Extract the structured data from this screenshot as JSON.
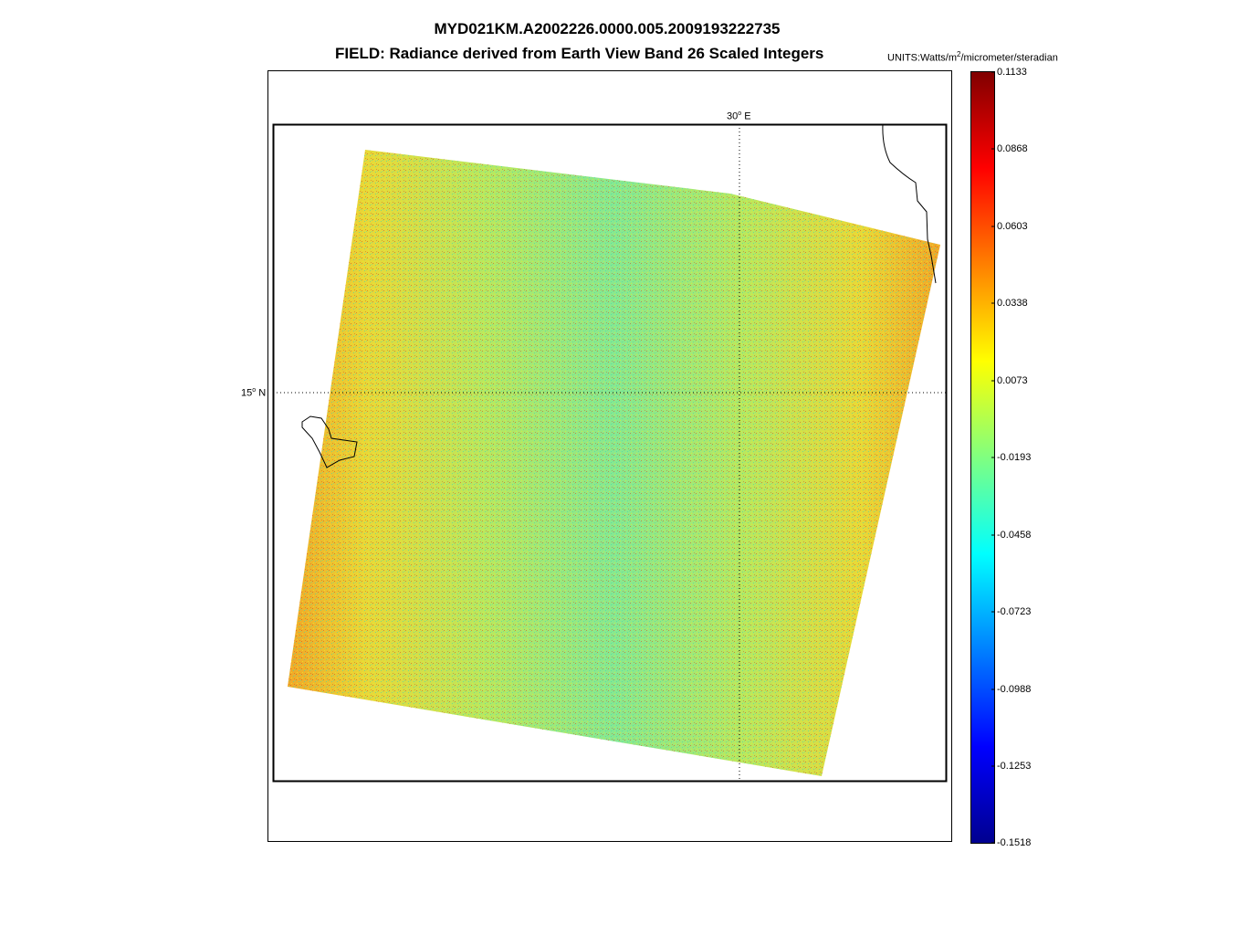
{
  "title": "MYD021KM.A2002226.0000.005.2009193222735",
  "field_line": "FIELD: Radiance derived from Earth View Band 26 Scaled Integers",
  "units": {
    "prefix": "UNITS:Watts/m",
    "exponent": "2",
    "suffix": "/micrometer/steradian"
  },
  "graticule": {
    "lon_label_value": "30",
    "lon_label_dir": "E",
    "lat_label_value": "15",
    "lat_label_dir": "N"
  },
  "colorbar": {
    "ticks": [
      "0.1133",
      "0.0868",
      "0.0603",
      "0.0338",
      "0.0073",
      "-0.0193",
      "-0.0458",
      "-0.0723",
      "-0.0988",
      "-0.1253",
      "-0.1518"
    ],
    "colormap": "jet"
  },
  "colors": {
    "frame": "#000000",
    "swath_base": "#c8e84a",
    "swath_edge": "#f0a020"
  }
}
